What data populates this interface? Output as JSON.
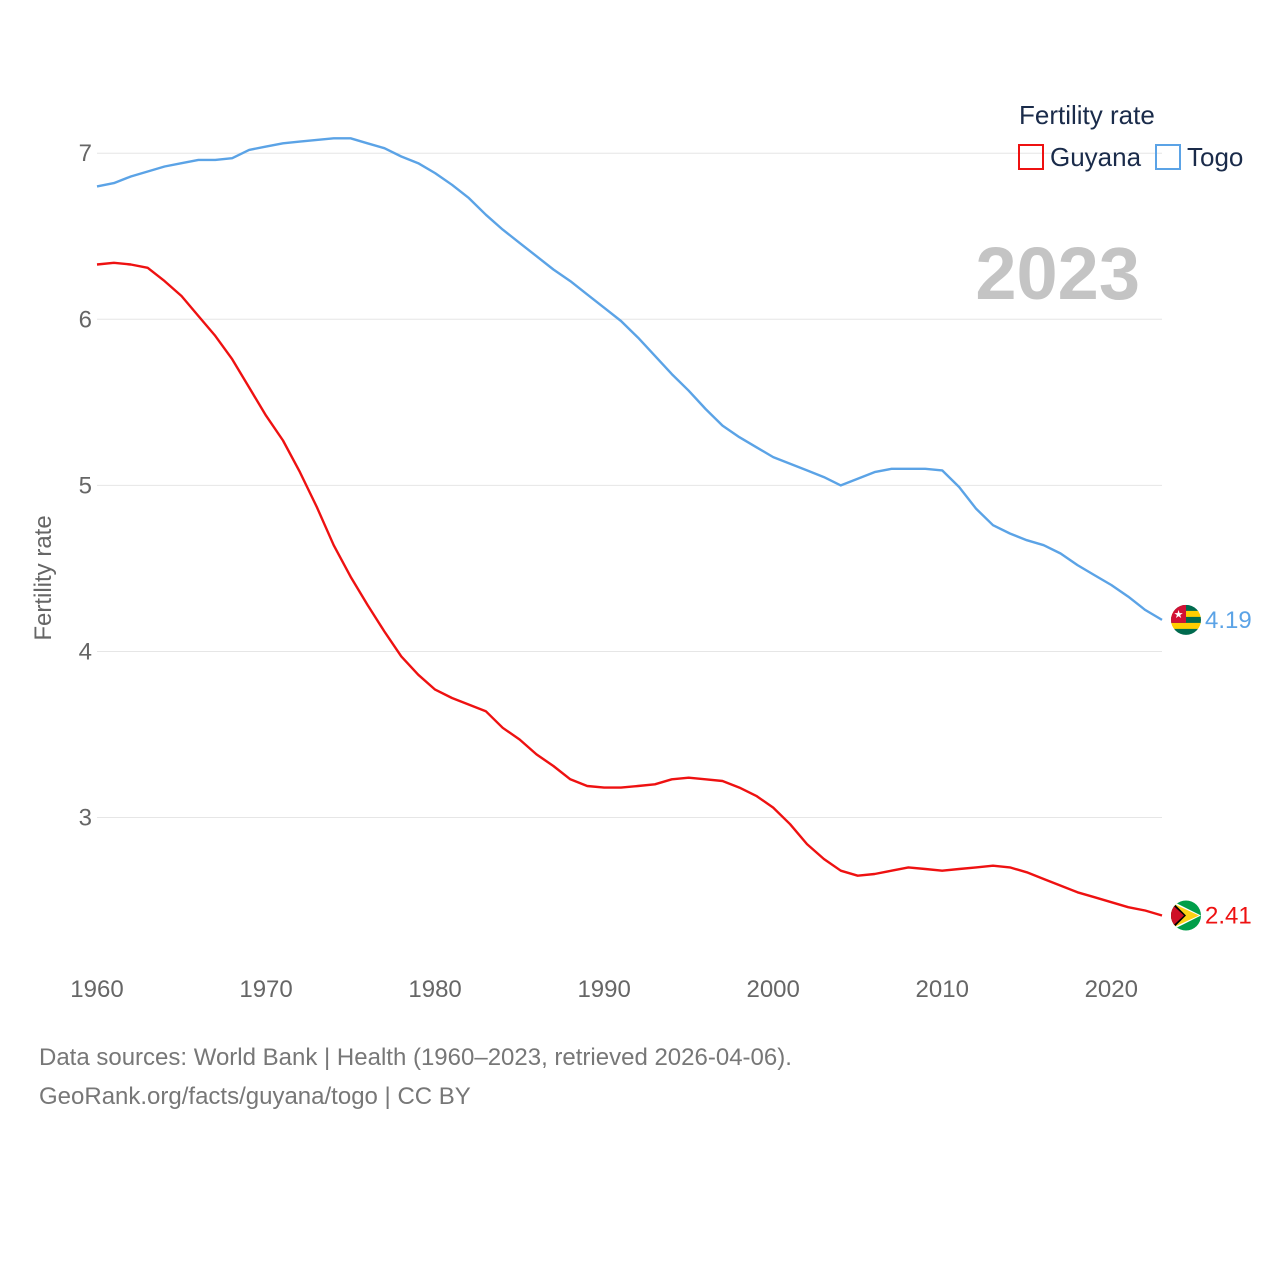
{
  "chart_data": {
    "type": "line",
    "ylabel": "Fertility rate",
    "legend": {
      "title": "Fertility rate",
      "placement": "top-right"
    },
    "current_year": "2023",
    "xlim": [
      1960,
      2023
    ],
    "ylim": [
      2.1,
      7.2
    ],
    "x_ticks": [
      1960,
      1970,
      1980,
      1990,
      2000,
      2010,
      2020
    ],
    "y_ticks": [
      3,
      4,
      5,
      6,
      7
    ],
    "x": [
      1960,
      1961,
      1962,
      1963,
      1964,
      1965,
      1966,
      1967,
      1968,
      1969,
      1970,
      1971,
      1972,
      1973,
      1974,
      1975,
      1976,
      1977,
      1978,
      1979,
      1980,
      1981,
      1982,
      1983,
      1984,
      1985,
      1986,
      1987,
      1988,
      1989,
      1990,
      1991,
      1992,
      1993,
      1994,
      1995,
      1996,
      1997,
      1998,
      1999,
      2000,
      2001,
      2002,
      2003,
      2004,
      2005,
      2006,
      2007,
      2008,
      2009,
      2010,
      2011,
      2012,
      2013,
      2014,
      2015,
      2016,
      2017,
      2018,
      2019,
      2020,
      2021,
      2022,
      2023
    ],
    "series": [
      {
        "name": "Guyana",
        "color": "#ee1111",
        "end_label": "2.41",
        "flag": "guyana-flag-icon",
        "values": [
          6.33,
          6.34,
          6.33,
          6.31,
          6.23,
          6.14,
          6.02,
          5.9,
          5.76,
          5.59,
          5.42,
          5.27,
          5.08,
          4.87,
          4.64,
          4.45,
          4.28,
          4.12,
          3.97,
          3.86,
          3.77,
          3.72,
          3.68,
          3.64,
          3.54,
          3.47,
          3.38,
          3.31,
          3.23,
          3.19,
          3.18,
          3.18,
          3.19,
          3.2,
          3.23,
          3.24,
          3.23,
          3.22,
          3.18,
          3.13,
          3.06,
          2.96,
          2.84,
          2.75,
          2.68,
          2.65,
          2.66,
          2.68,
          2.7,
          2.69,
          2.68,
          2.69,
          2.7,
          2.71,
          2.7,
          2.67,
          2.63,
          2.59,
          2.55,
          2.52,
          2.49,
          2.46,
          2.44,
          2.41
        ]
      },
      {
        "name": "Togo",
        "color": "#5ba3e6",
        "end_label": "4.19",
        "flag": "togo-flag-icon",
        "values": [
          6.8,
          6.82,
          6.86,
          6.89,
          6.92,
          6.94,
          6.96,
          6.96,
          6.97,
          7.02,
          7.04,
          7.06,
          7.07,
          7.08,
          7.09,
          7.09,
          7.06,
          7.03,
          6.98,
          6.94,
          6.88,
          6.81,
          6.73,
          6.63,
          6.54,
          6.46,
          6.38,
          6.3,
          6.23,
          6.15,
          6.07,
          5.99,
          5.89,
          5.78,
          5.67,
          5.57,
          5.46,
          5.36,
          5.29,
          5.23,
          5.17,
          5.13,
          5.09,
          5.05,
          5.0,
          5.04,
          5.08,
          5.1,
          5.1,
          5.1,
          5.09,
          4.99,
          4.86,
          4.76,
          4.71,
          4.67,
          4.64,
          4.59,
          4.52,
          4.46,
          4.4,
          4.33,
          4.25,
          4.19
        ]
      }
    ]
  },
  "footer": {
    "source_line": "Data sources: World Bank | Health (1960–2023, retrieved 2026-04-06).",
    "attribution_line": "GeoRank.org/facts/guyana/togo | CC BY"
  }
}
